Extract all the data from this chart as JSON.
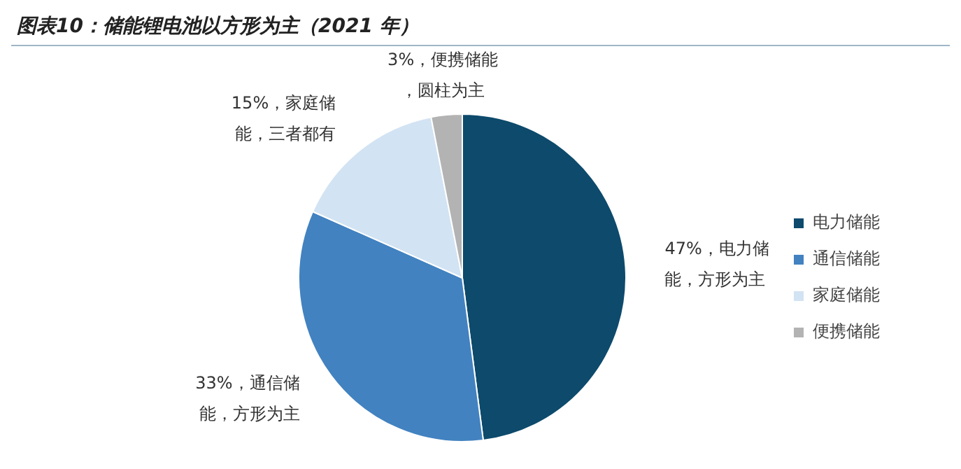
{
  "chart_data": {
    "type": "pie",
    "title": "图表10：储能锂电池以方形为主（2021 年）",
    "categories": [
      "电力储能",
      "通信储能",
      "家庭储能",
      "便携储能"
    ],
    "values": [
      47,
      33,
      15,
      3
    ],
    "colors": [
      "#0d4a6c",
      "#4282c0",
      "#d2e3f3",
      "#b3b3b3"
    ],
    "value_labels": [
      "47%，电力储能，方形为主",
      "33%，通信储能，方形为主",
      "15%，家庭储能，三者都有",
      "3%，便携储能，圆柱为主"
    ],
    "legend": "right"
  }
}
